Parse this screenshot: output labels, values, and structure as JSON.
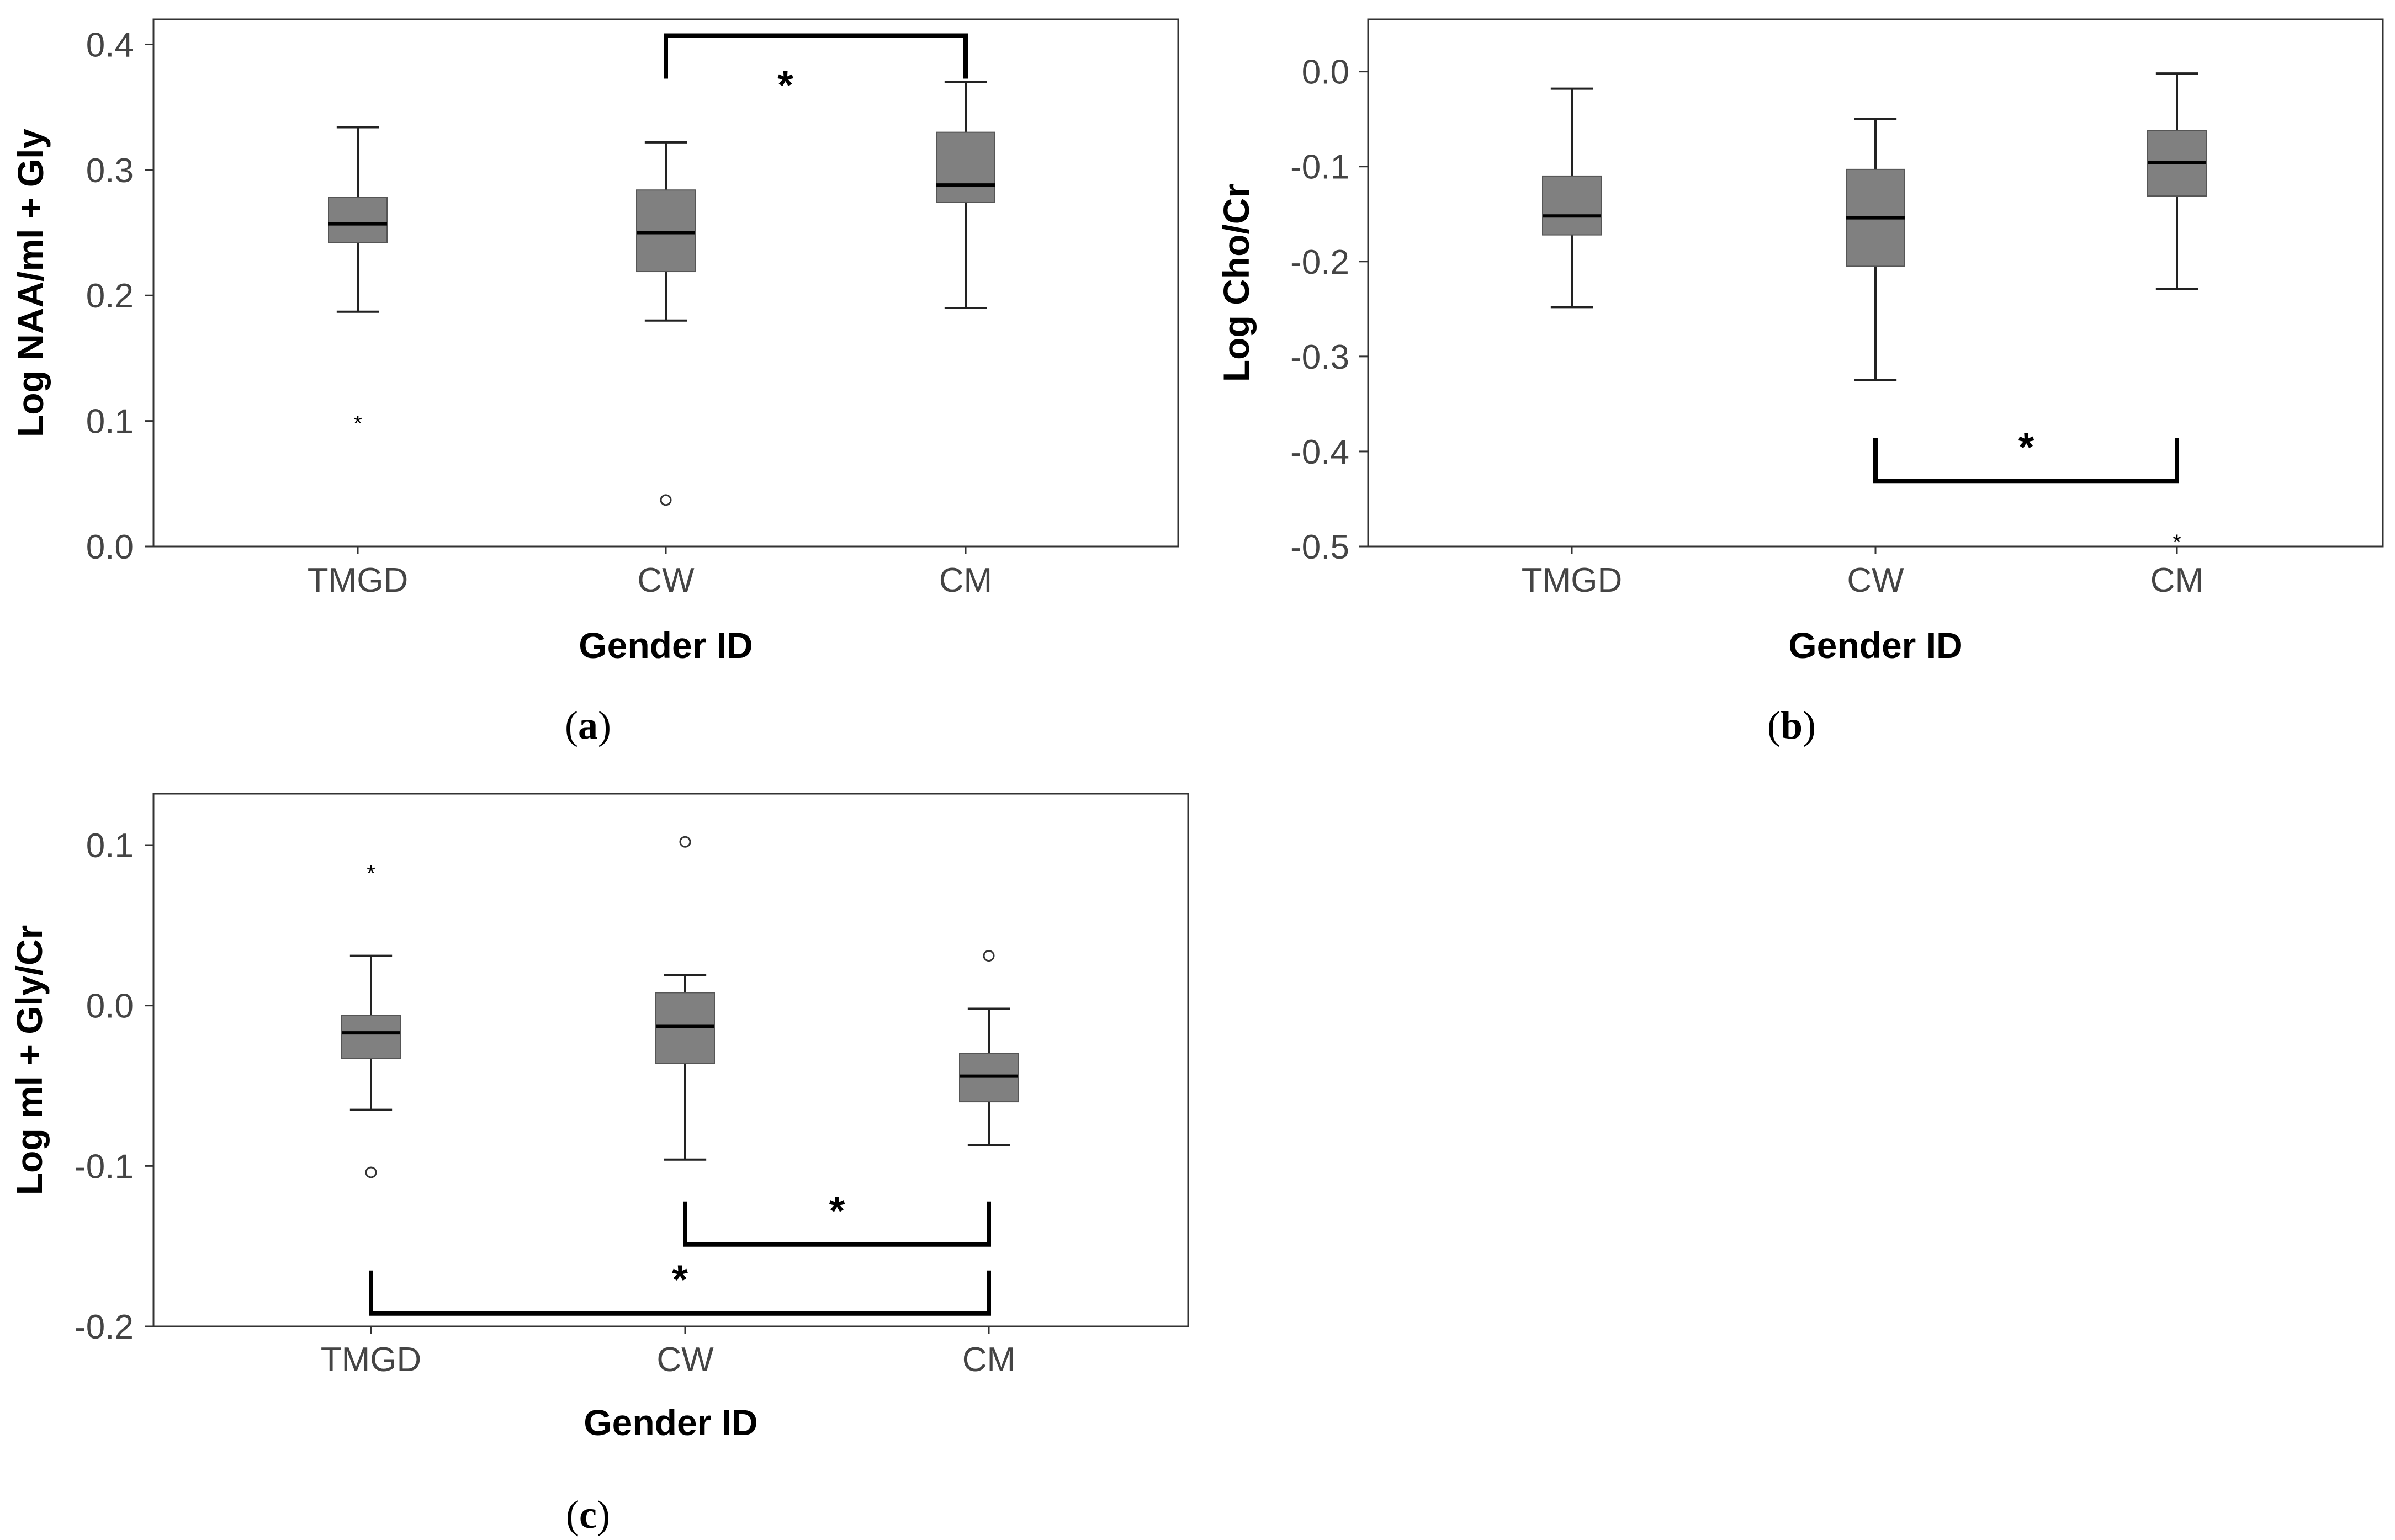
{
  "chart_data": [
    {
      "type": "box",
      "panel_label": "a",
      "xlabel": "Gender ID",
      "ylabel": "Log NAA/ml + Gly",
      "categories": [
        "TMGD",
        "CW",
        "CM"
      ],
      "ylim": [
        0.0,
        0.42
      ],
      "yticks": [
        0.0,
        0.1,
        0.2,
        0.3,
        0.4
      ],
      "ytick_labels": [
        "0.0",
        "0.1",
        "0.2",
        "0.3",
        "0.4"
      ],
      "boxes": [
        {
          "category": "TMGD",
          "whisker_low": 0.187,
          "q1": 0.242,
          "median": 0.257,
          "q3": 0.278,
          "whisker_high": 0.334
        },
        {
          "category": "CW",
          "whisker_low": 0.18,
          "q1": 0.219,
          "median": 0.25,
          "q3": 0.284,
          "whisker_high": 0.322
        },
        {
          "category": "CM",
          "whisker_low": 0.19,
          "q1": 0.274,
          "median": 0.288,
          "q3": 0.33,
          "whisker_high": 0.37
        }
      ],
      "outliers": [
        {
          "category": "TMGD",
          "value": 0.1,
          "marker": "star"
        },
        {
          "category": "CW",
          "value": 0.037,
          "marker": "circle"
        }
      ],
      "significance": [
        {
          "from": "CW",
          "to": "CM",
          "y": 0.407,
          "direction": "down",
          "label": "*"
        }
      ]
    },
    {
      "type": "box",
      "panel_label": "b",
      "xlabel": "Gender ID",
      "ylabel": "Log Cho/Cr",
      "categories": [
        "TMGD",
        "CW",
        "CM"
      ],
      "ylim": [
        -0.5,
        0.055
      ],
      "yticks": [
        0.0,
        -0.1,
        -0.2,
        -0.3,
        -0.4,
        -0.5
      ],
      "ytick_labels": [
        "0.0",
        "-0.1",
        "-0.2",
        "-0.3",
        "-0.4",
        "-0.5"
      ],
      "boxes": [
        {
          "category": "TMGD",
          "whisker_low": -0.248,
          "q1": -0.172,
          "median": -0.152,
          "q3": -0.11,
          "whisker_high": -0.018
        },
        {
          "category": "CW",
          "whisker_low": -0.325,
          "q1": -0.205,
          "median": -0.154,
          "q3": -0.103,
          "whisker_high": -0.05
        },
        {
          "category": "CM",
          "whisker_low": -0.229,
          "q1": -0.131,
          "median": -0.096,
          "q3": -0.062,
          "whisker_high": -0.002
        }
      ],
      "outliers": [
        {
          "category": "CM",
          "value": -0.493,
          "marker": "star"
        }
      ],
      "significance": [
        {
          "from": "CW",
          "to": "CM",
          "y": -0.431,
          "direction": "up",
          "label": "*"
        }
      ]
    },
    {
      "type": "box",
      "panel_label": "c",
      "xlabel": "Gender ID",
      "ylabel": "Log ml + Gly/Cr",
      "categories": [
        "TMGD",
        "CW",
        "CM"
      ],
      "ylim": [
        -0.2,
        0.132
      ],
      "yticks": [
        0.1,
        0.0,
        -0.1,
        -0.2
      ],
      "ytick_labels": [
        "0.1",
        "0.0",
        "-0.1",
        "-0.2"
      ],
      "boxes": [
        {
          "category": "TMGD",
          "whisker_low": -0.065,
          "q1": -0.033,
          "median": -0.017,
          "q3": -0.006,
          "whisker_high": 0.031
        },
        {
          "category": "CW",
          "whisker_low": -0.096,
          "q1": -0.036,
          "median": -0.013,
          "q3": 0.008,
          "whisker_high": 0.019
        },
        {
          "category": "CM",
          "whisker_low": -0.087,
          "q1": -0.06,
          "median": -0.044,
          "q3": -0.03,
          "whisker_high": -0.002
        }
      ],
      "outliers": [
        {
          "category": "TMGD",
          "value": 0.084,
          "marker": "star"
        },
        {
          "category": "TMGD",
          "value": -0.104,
          "marker": "circle"
        },
        {
          "category": "CW",
          "value": 0.102,
          "marker": "circle"
        },
        {
          "category": "CM",
          "value": 0.031,
          "marker": "circle"
        }
      ],
      "significance": [
        {
          "from": "CW",
          "to": "CM",
          "y": -0.149,
          "direction": "up",
          "label": "*"
        },
        {
          "from": "TMGD",
          "to": "CM",
          "y": -0.192,
          "direction": "up",
          "label": "*"
        }
      ]
    }
  ],
  "captions": [
    "(a)",
    "(b)",
    "(c)"
  ]
}
